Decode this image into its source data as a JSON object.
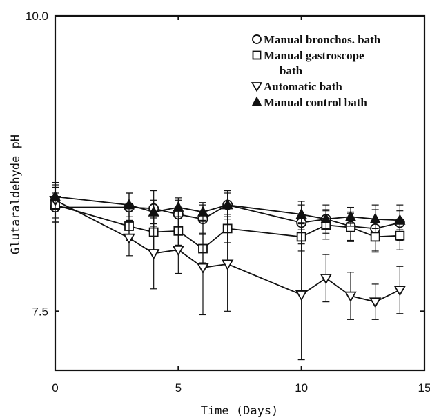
{
  "chart_data": {
    "type": "line",
    "title": "",
    "xlabel": "Time (Days)",
    "ylabel": "Glutaraldehyde pH",
    "xlim": [
      0,
      15
    ],
    "ylim": [
      7.0,
      10.0
    ],
    "x_ticks": [
      0,
      5,
      10,
      15
    ],
    "x_tick_labels": [
      "0",
      "5",
      "10",
      "15"
    ],
    "y_ticks": [
      7.5,
      10.0
    ],
    "y_tick_labels": [
      "7.5",
      "10.0"
    ],
    "grid": false,
    "legend_position": "top-right",
    "series": [
      {
        "name": "Manual bronchos. bath",
        "marker": "circle-open",
        "x": [
          0,
          3,
          4,
          5,
          6,
          7,
          10,
          11,
          12,
          13,
          14
        ],
        "y": [
          8.38,
          8.38,
          8.37,
          8.32,
          8.28,
          8.4,
          8.25,
          8.28,
          8.22,
          8.2,
          8.25
        ],
        "err": [
          0.12,
          0.12,
          0.15,
          0.12,
          0.12,
          0.12,
          0.18,
          0.12,
          0.12,
          0.2,
          0.15
        ]
      },
      {
        "name": "Manual gastroscope bath",
        "marker": "square-open",
        "x": [
          0,
          3,
          4,
          5,
          6,
          7,
          10,
          11,
          12,
          13,
          14
        ],
        "y": [
          8.4,
          8.22,
          8.17,
          8.18,
          8.03,
          8.2,
          8.13,
          8.23,
          8.21,
          8.13,
          8.14
        ],
        "err": [
          0.15,
          0.12,
          0.15,
          0.12,
          0.12,
          0.12,
          0.12,
          0.12,
          0.12,
          0.12,
          0.12
        ]
      },
      {
        "name": "Automatic bath",
        "marker": "triangle-down-open",
        "x": [
          0,
          3,
          4,
          5,
          6,
          7,
          10,
          11,
          12,
          13,
          14
        ],
        "y": [
          8.44,
          8.12,
          7.99,
          8.02,
          7.87,
          7.9,
          7.64,
          7.78,
          7.63,
          7.58,
          7.68
        ],
        "err": [
          0.15,
          0.15,
          0.3,
          0.2,
          0.4,
          0.4,
          0.55,
          0.2,
          0.2,
          0.15,
          0.2
        ]
      },
      {
        "name": "Manual control bath",
        "marker": "triangle-up-filled",
        "x": [
          0,
          3,
          4,
          5,
          6,
          7,
          10,
          11,
          12,
          13,
          14
        ],
        "y": [
          8.47,
          8.4,
          8.34,
          8.38,
          8.34,
          8.4,
          8.32,
          8.28,
          8.3,
          8.28,
          8.27
        ],
        "err": [
          0.1,
          0.1,
          0.1,
          0.08,
          0.08,
          0.1,
          0.08,
          0.08,
          0.08,
          0.08,
          0.08
        ]
      }
    ]
  },
  "legend": {
    "items": [
      {
        "label_lines": [
          "Manual bronchos. bath"
        ],
        "marker": "circle-open"
      },
      {
        "label_lines": [
          "Manual gastroscope",
          "bath"
        ],
        "marker": "square-open"
      },
      {
        "label_lines": [
          "Automatic bath"
        ],
        "marker": "triangle-down-open"
      },
      {
        "label_lines": [
          "Manual control bath"
        ],
        "marker": "triangle-up-filled"
      }
    ]
  }
}
